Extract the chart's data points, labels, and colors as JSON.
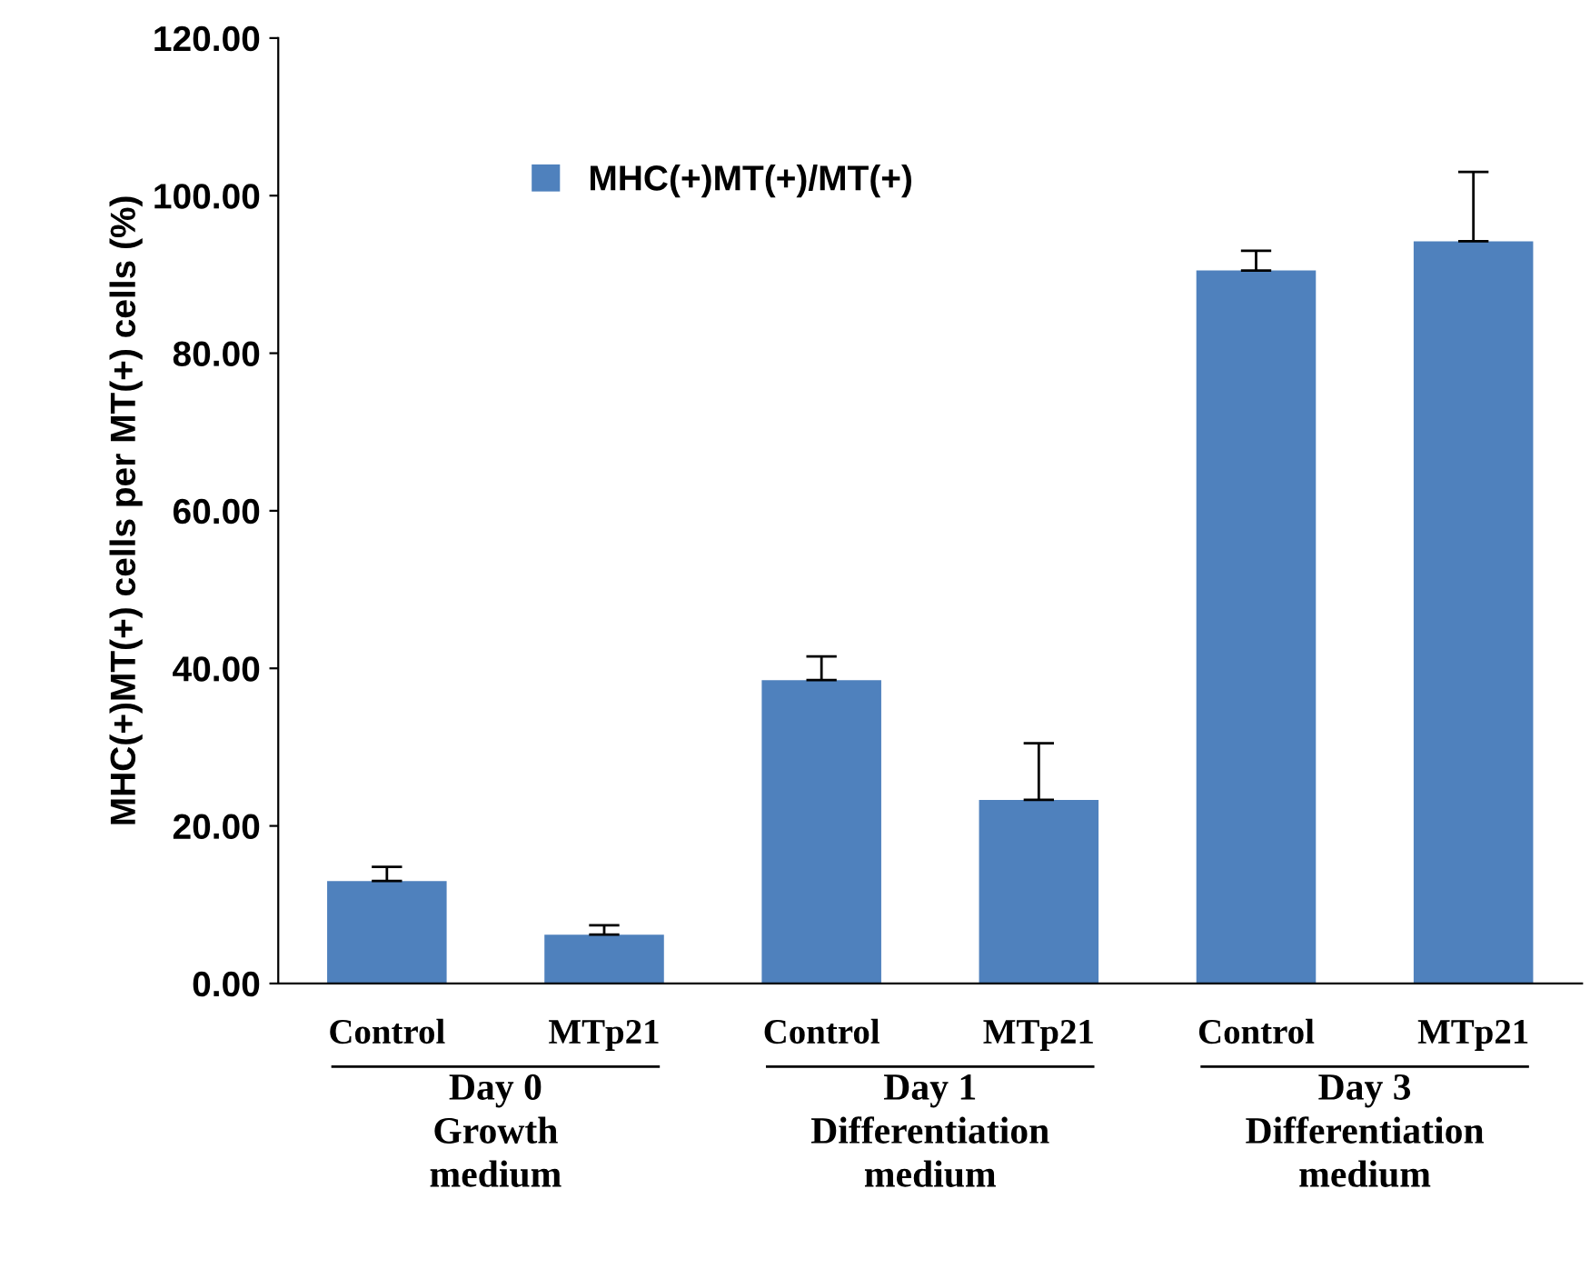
{
  "chart_data": {
    "type": "bar",
    "ylabel": "MHC(+)MT(+) cells per MT(+) cells (%)",
    "categories": [
      "Control",
      "MTp21",
      "Control",
      "MTp21",
      "Control",
      "MTp21"
    ],
    "series": [
      {
        "name": "MHC(+)MT(+)/MT(+)",
        "color": "#4f81bd",
        "values": [
          13.0,
          6.2,
          38.5,
          23.3,
          90.5,
          94.2
        ],
        "errors": [
          [
            13.0,
            14.8
          ],
          [
            6.2,
            7.4
          ],
          [
            38.5,
            41.5
          ],
          [
            23.3,
            30.5
          ],
          [
            90.5,
            93.0
          ],
          [
            94.2,
            103.0
          ]
        ]
      }
    ],
    "ylim": [
      0,
      120
    ],
    "yticks": [
      {
        "value": 0,
        "label": "0.00"
      },
      {
        "value": 20,
        "label": "20.00"
      },
      {
        "value": 40,
        "label": "40.00"
      },
      {
        "value": 60,
        "label": "60.00"
      },
      {
        "value": 80,
        "label": "80.00"
      },
      {
        "value": 100,
        "label": "100.00"
      },
      {
        "value": 120,
        "label": "120.00"
      }
    ],
    "annotations": [
      "Day 0\nGrowth\nmedium",
      "Day 1\nDifferentiation\nmedium",
      "Day 3\nDifferentiation\nmedium"
    ],
    "legend": "top",
    "grid": false
  }
}
